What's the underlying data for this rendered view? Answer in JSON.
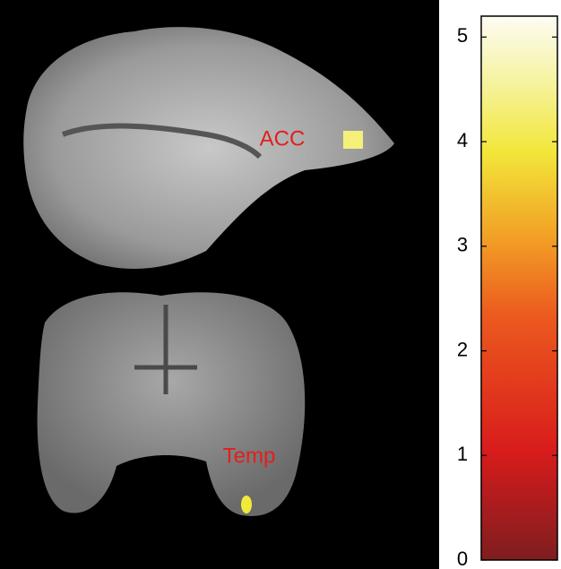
{
  "figure": {
    "annotations": [
      "ACC",
      "Temp"
    ],
    "colorbar": {
      "lim": [
        0,
        5.2
      ],
      "ticks": [
        0,
        1,
        2,
        3,
        4,
        5
      ]
    }
  }
}
